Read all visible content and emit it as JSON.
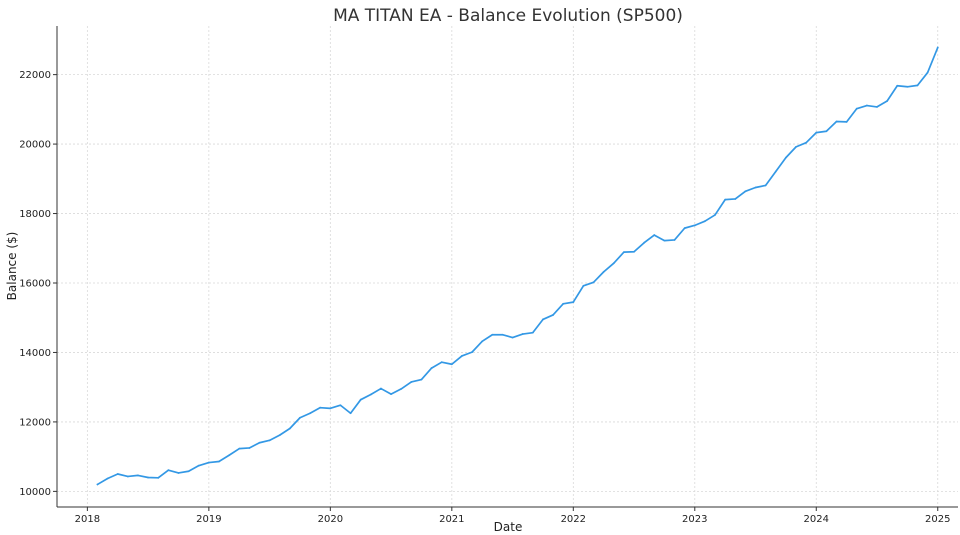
{
  "chart_data": {
    "type": "line",
    "title": "MA TITAN EA - Balance Evolution (SP500)",
    "xlabel": "Date",
    "ylabel": "Balance ($)",
    "x_ticks": [
      "2018",
      "2019",
      "2020",
      "2021",
      "2022",
      "2023",
      "2024",
      "2025"
    ],
    "y_ticks": [
      "10000",
      "12000",
      "14000",
      "16000",
      "18000",
      "20000",
      "22000"
    ],
    "y_tick_values": [
      10000,
      12000,
      14000,
      16000,
      18000,
      20000,
      22000
    ],
    "xlim": [
      "2017-10",
      "2025-03"
    ],
    "ylim": [
      9550,
      23400
    ],
    "grid": true,
    "colors": {
      "series": "#3398e5",
      "grid": "#d9d9d9",
      "axis": "#333333"
    },
    "series": [
      {
        "x": [
          "2018-02",
          "2018-03",
          "2018-04",
          "2018-05",
          "2018-06",
          "2018-07",
          "2018-08",
          "2018-09",
          "2018-10",
          "2018-11",
          "2018-12",
          "2019-01",
          "2019-02",
          "2019-03",
          "2019-04",
          "2019-05",
          "2019-06",
          "2019-07",
          "2019-08",
          "2019-09",
          "2019-10",
          "2019-11",
          "2019-12",
          "2020-01",
          "2020-02",
          "2020-03",
          "2020-04",
          "2020-05",
          "2020-06",
          "2020-07",
          "2020-08",
          "2020-09",
          "2020-10",
          "2020-11",
          "2020-12",
          "2021-01",
          "2021-02",
          "2021-03",
          "2021-04",
          "2021-05",
          "2021-06",
          "2021-07",
          "2021-08",
          "2021-09",
          "2021-10",
          "2021-11",
          "2021-12",
          "2022-01",
          "2022-02",
          "2022-03",
          "2022-04",
          "2022-05",
          "2022-06",
          "2022-07",
          "2022-08",
          "2022-09",
          "2022-10",
          "2022-11",
          "2022-12",
          "2023-01",
          "2023-02",
          "2023-03",
          "2023-04",
          "2023-05",
          "2023-06",
          "2023-07",
          "2023-08",
          "2023-09",
          "2023-10",
          "2023-11",
          "2023-12",
          "2024-01",
          "2024-02",
          "2024-03",
          "2024-04",
          "2024-05",
          "2024-06",
          "2024-07",
          "2024-08",
          "2024-09",
          "2024-10",
          "2024-11",
          "2024-12",
          "2025-01"
        ],
        "values": [
          10200,
          10370,
          10500,
          10430,
          10460,
          10400,
          10390,
          10610,
          10530,
          10580,
          10740,
          10830,
          10860,
          11040,
          11230,
          11250,
          11400,
          11470,
          11620,
          11810,
          12120,
          12250,
          12410,
          12390,
          12480,
          12250,
          12640,
          12790,
          12960,
          12800,
          12950,
          13150,
          13220,
          13550,
          13720,
          13660,
          13900,
          14010,
          14320,
          14510,
          14510,
          14430,
          14530,
          14570,
          14950,
          15080,
          15400,
          15450,
          15920,
          16020,
          16320,
          16570,
          16890,
          16900,
          17160,
          17380,
          17220,
          17240,
          17580,
          17660,
          17780,
          17960,
          18400,
          18420,
          18640,
          18750,
          18810,
          19210,
          19610,
          19920,
          20040,
          20330,
          20370,
          20650,
          20640,
          21020,
          21110,
          21070,
          21240,
          21680,
          21650,
          21690,
          22060,
          22780
        ]
      }
    ]
  }
}
